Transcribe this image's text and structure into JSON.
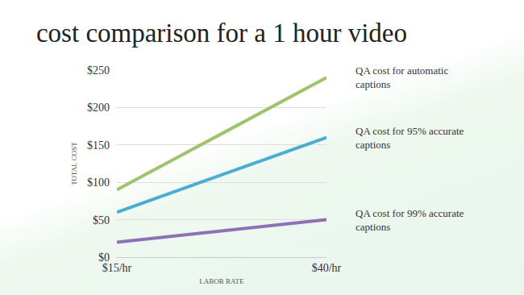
{
  "chart_data": {
    "type": "line",
    "title": "cost comparison for a 1 hour video",
    "x_label": "LABOR RATE",
    "y_label": "TOTAL COST",
    "categories": [
      "$15/hr",
      "$40/hr"
    ],
    "series": [
      {
        "name": "QA cost for automatic captions",
        "color": "#9dc46a",
        "values": [
          90,
          240
        ]
      },
      {
        "name": "QA cost for 95% accurate captions",
        "color": "#4aaed2",
        "values": [
          60,
          160
        ]
      },
      {
        "name": "QA cost for 99% accurate captions",
        "color": "#8c72b5",
        "values": [
          20,
          50
        ]
      }
    ],
    "ylim": [
      0,
      250
    ],
    "yticks": [
      {
        "value": 0,
        "label": "$0"
      },
      {
        "value": 50,
        "label": "$50"
      },
      {
        "value": 100,
        "label": "$100"
      },
      {
        "value": 150,
        "label": "$150"
      },
      {
        "value": 200,
        "label": "$200"
      },
      {
        "value": 250,
        "label": "$250"
      }
    ],
    "grid": true
  }
}
